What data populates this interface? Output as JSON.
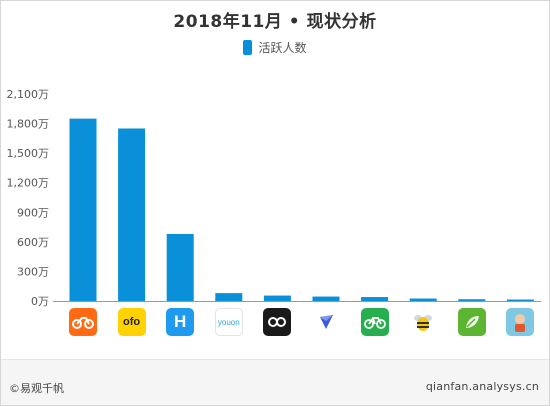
{
  "chart_data": {
    "type": "bar",
    "title": "2018年11月 • 现状分析",
    "legend": [
      "活跃人数"
    ],
    "legend_position": "top-center",
    "series": [
      {
        "name": "活跃人数",
        "color": "#0a8fd9",
        "values": [
          1850,
          1750,
          680,
          80,
          55,
          45,
          40,
          25,
          18,
          15
        ]
      }
    ],
    "categories_icons": [
      "mobike-app-icon",
      "ofo-app-icon",
      "hellobike-app-icon",
      "youon-app-icon",
      "loop-app-icon",
      "arrow-app-icon",
      "green-bicycle-app-icon",
      "bee-app-icon",
      "green-leaf-app-icon",
      "cartoon-app-icon"
    ],
    "ylim": [
      0,
      2100
    ],
    "y_ticks": [
      0,
      300,
      600,
      900,
      1200,
      1500,
      1800,
      2100
    ],
    "y_tick_labels": [
      "0万",
      "300万",
      "600万",
      "900万",
      "1,200万",
      "1,500万",
      "1,800万",
      "2,100万"
    ],
    "grid": false
  },
  "icons": {
    "ofo_text": "ofo",
    "hellobike_text": "H",
    "youon_text": "youon"
  },
  "footer": {
    "left": "©易观千帆",
    "right": "qianfan.analysys.cn"
  },
  "colors": {
    "bar": "#0a8fd9",
    "axis": "#999999",
    "text": "#555555"
  }
}
